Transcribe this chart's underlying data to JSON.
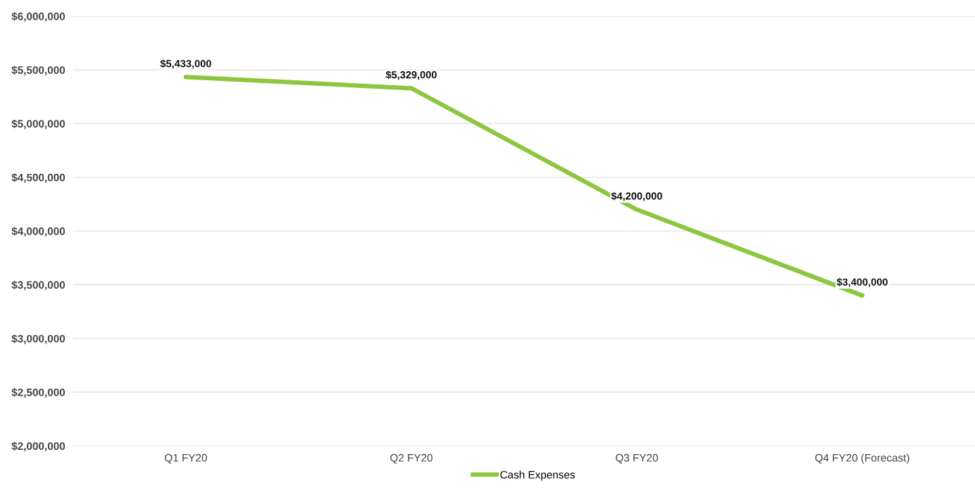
{
  "chart_data": {
    "type": "line",
    "categories": [
      "Q1 FY20",
      "Q2 FY20",
      "Q3 FY20",
      "Q4 FY20 (Forecast)"
    ],
    "series": [
      {
        "name": "Cash Expenses",
        "color": "#8dc63f",
        "values": [
          5433000,
          5329000,
          4200000,
          3400000
        ],
        "value_labels": [
          "$5,433,000",
          "$5,329,000",
          "$4,200,000",
          "$3,400,000"
        ]
      }
    ],
    "ylim": [
      2000000,
      6000000
    ],
    "yticks": [
      {
        "value": 2000000,
        "label": "$2,000,000"
      },
      {
        "value": 2500000,
        "label": "$2,500,000"
      },
      {
        "value": 3000000,
        "label": "$3,000,000"
      },
      {
        "value": 3500000,
        "label": "$3,500,000"
      },
      {
        "value": 4000000,
        "label": "$4,000,000"
      },
      {
        "value": 4500000,
        "label": "$4,500,000"
      },
      {
        "value": 5000000,
        "label": "$5,000,000"
      },
      {
        "value": 5500000,
        "label": "$5,500,000"
      },
      {
        "value": 6000000,
        "label": "$6,000,000"
      }
    ],
    "grid": "y",
    "legend": "bottom",
    "marker": "none",
    "line_style": "solid"
  }
}
